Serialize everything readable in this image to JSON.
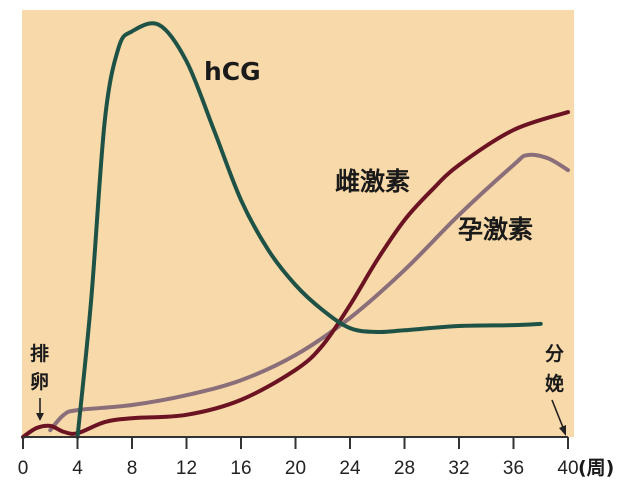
{
  "chart_data": {
    "type": "line",
    "title": "",
    "xlabel": "(周)",
    "ylabel": "",
    "xlim": [
      0,
      40
    ],
    "ylim": [
      0,
      100
    ],
    "x_ticks": [
      "0",
      "4",
      "8",
      "12",
      "16",
      "20",
      "24",
      "28",
      "32",
      "36",
      "40"
    ],
    "grid": false,
    "background_color": "#f8d9a9",
    "series": [
      {
        "name": "hCG",
        "color": "#1f5246",
        "x": [
          4,
          5,
          6,
          7,
          8,
          10,
          12,
          14,
          16,
          18,
          20,
          22,
          24,
          26,
          28,
          32,
          36,
          38
        ],
        "y": [
          0,
          32,
          74,
          91,
          95,
          96.5,
          88,
          72,
          55.5,
          43.8,
          35.6,
          29.7,
          25.5,
          24.6,
          25,
          26,
          26.2,
          26.5
        ]
      },
      {
        "name": "雌激素",
        "color": "#6b1322",
        "x": [
          0,
          1,
          2,
          3,
          4,
          6,
          8,
          12,
          16,
          20,
          22,
          24,
          26,
          28,
          30,
          32,
          36,
          40
        ],
        "y": [
          0,
          2.1,
          2.6,
          1.2,
          0.9,
          3.5,
          4.4,
          5.2,
          8.7,
          15.7,
          21.5,
          30.9,
          41.5,
          50.8,
          57.8,
          63.7,
          71.9,
          76.1
        ]
      },
      {
        "name": "孕激素",
        "color": "#8a6f7a",
        "x": [
          2,
          3,
          4,
          8,
          12,
          16,
          20,
          24,
          28,
          32,
          36,
          37,
          38.5,
          40
        ],
        "y": [
          1.6,
          5.2,
          6.3,
          7.5,
          9.8,
          13.3,
          19.2,
          27.9,
          39.1,
          52,
          63.7,
          66,
          65.3,
          62.5
        ]
      }
    ],
    "annotations": [
      {
        "text": "排卵",
        "at_x": 1.3,
        "chars": [
          "排",
          "卵"
        ],
        "arrow": "↓"
      },
      {
        "text": "分娩",
        "at_x": 40,
        "chars": [
          "分",
          "娩"
        ]
      }
    ]
  }
}
